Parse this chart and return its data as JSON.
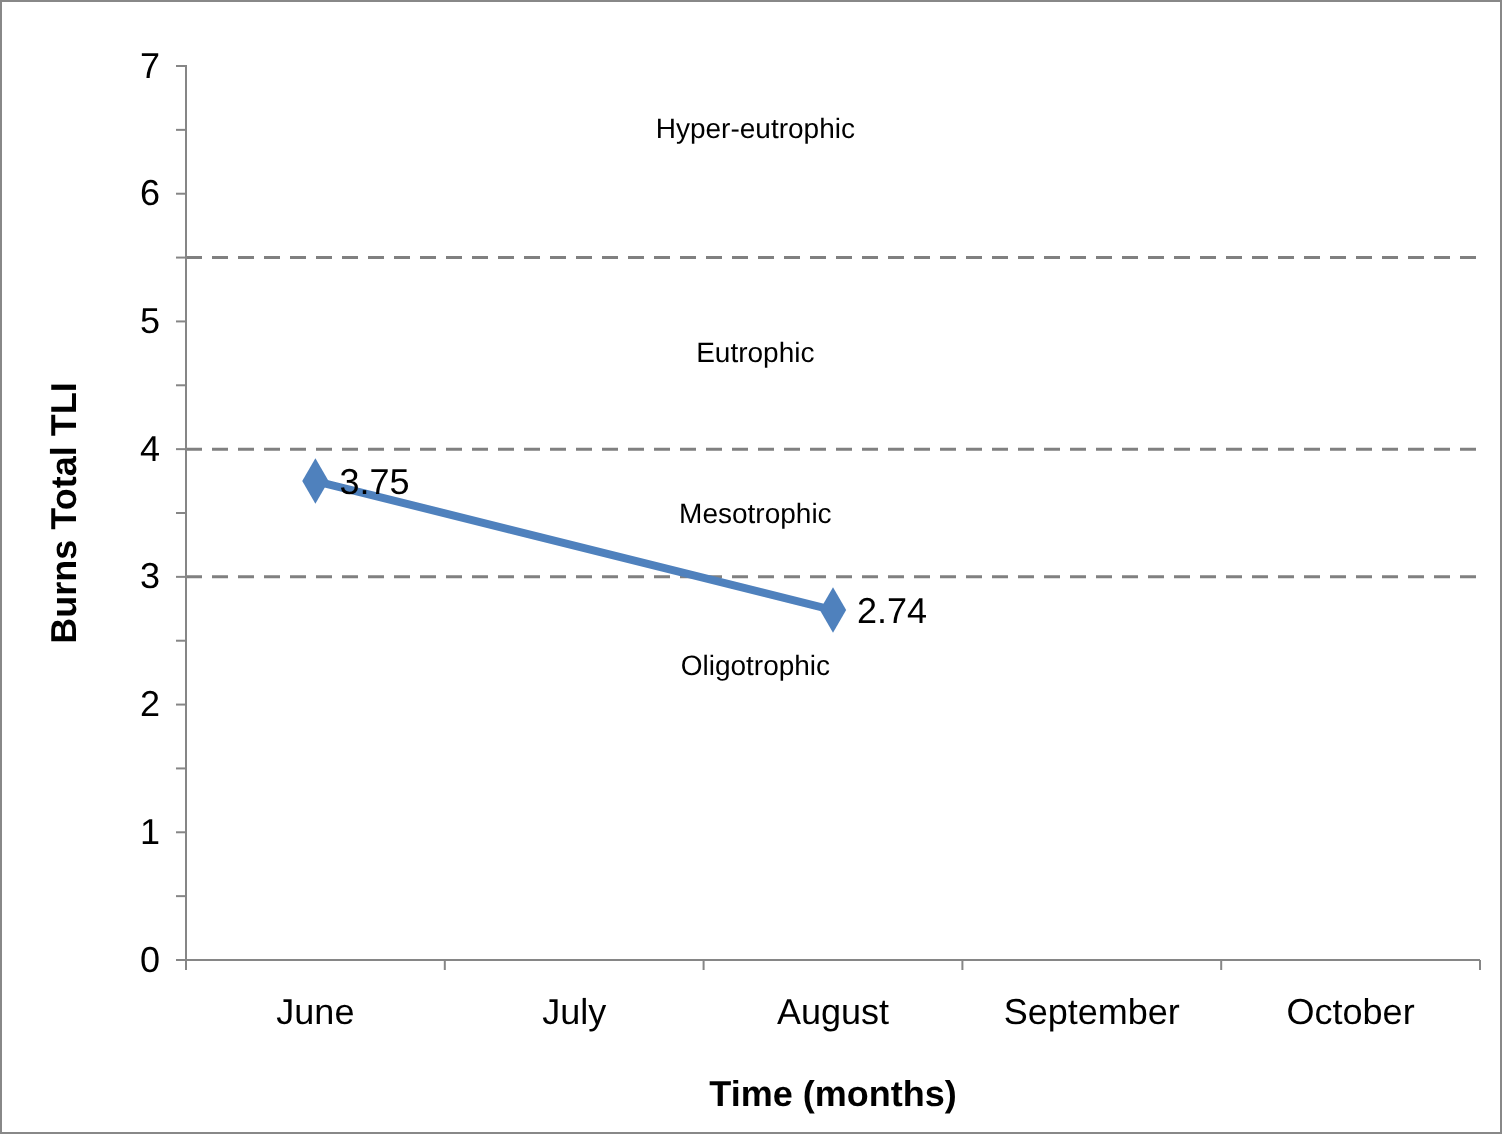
{
  "chart_data": {
    "type": "line",
    "xlabel": "Time (months)",
    "ylabel": "Burns Total TLI",
    "categories": [
      "June",
      "July",
      "August",
      "September",
      "October"
    ],
    "series": [
      {
        "color": "#4f81bd",
        "values": [
          3.75,
          null,
          2.74,
          null,
          null
        ]
      }
    ],
    "ylim": [
      0,
      7
    ],
    "yticks": [
      0,
      {
        "value": 0.5,
        "label": null
      },
      1,
      {
        "value": 1.5,
        "label": null
      },
      2,
      {
        "value": 2.5,
        "label": null
      },
      3,
      {
        "value": 3.5,
        "label": null
      },
      4,
      {
        "value": 4.5,
        "label": null
      },
      5,
      {
        "value": 5.5,
        "label": null
      },
      6,
      {
        "value": 6.5,
        "label": null
      },
      7
    ],
    "marker": "diamond",
    "line_style": "solid",
    "data_labels": true,
    "grid": false,
    "ref_lines": [
      {
        "axis": "y",
        "value": 3,
        "color": "#808080",
        "line_style": "dashed"
      },
      {
        "axis": "y",
        "value": 4,
        "color": "#808080",
        "line_style": "dashed"
      },
      {
        "axis": "y",
        "value": 5.5,
        "color": "#808080",
        "line_style": "dashed"
      }
    ],
    "annotations": [
      "Hyper-eutrophic",
      "Eutrophic",
      "Mesotrophic",
      "Oligotrophic"
    ]
  }
}
